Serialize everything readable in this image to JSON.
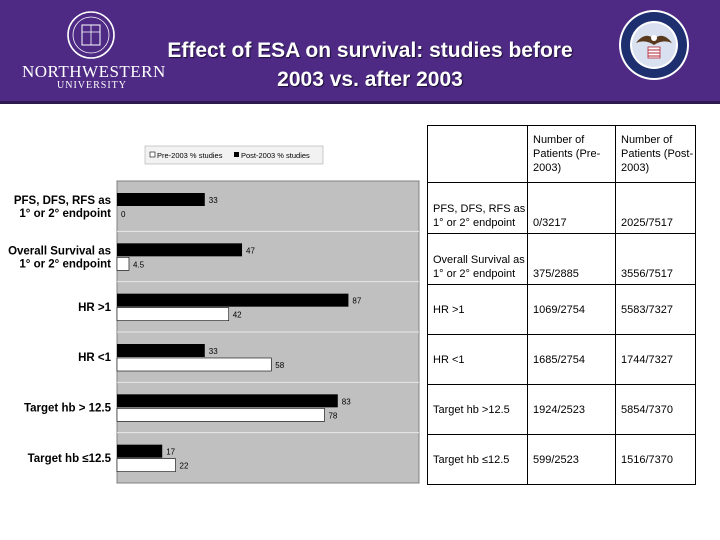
{
  "slide": {
    "title_line1": "Effect of ESA on survival: studies before",
    "title_line2": "2003 vs. after 2003",
    "left_logo_text": "NORTHWESTERN",
    "left_logo_subtext": "UNIVERSITY",
    "colors": {
      "header": "#4e2a84",
      "pre_bar": "#ffffff",
      "post_bar": "#000000",
      "plot_bg": "#c0c0c0"
    }
  },
  "chart_data": {
    "type": "bar",
    "orientation": "horizontal",
    "title": "",
    "xlabel": "",
    "ylabel": "",
    "legend": {
      "position": "top",
      "entries": [
        "Pre-2003 % studies",
        "Post-2003 % studies"
      ]
    },
    "categories": [
      [
        "PFS, DFS, RFS as",
        "1° or 2° endpoint"
      ],
      [
        "Overall Survival as",
        "1° or 2° endpoint"
      ],
      [
        "HR >1"
      ],
      [
        "HR <1"
      ],
      [
        "Target hb > 12.5"
      ],
      [
        "Target hb ≤12.5"
      ]
    ],
    "series": [
      {
        "name": "Post-2003 % studies",
        "color": "#000000",
        "values": [
          33,
          47,
          87,
          33,
          83,
          17
        ]
      },
      {
        "name": "Pre-2003 % studies",
        "color": "#ffffff",
        "values": [
          0,
          4.5,
          42,
          58,
          78,
          22
        ]
      }
    ],
    "xlim": [
      0,
      100
    ],
    "grid": true
  },
  "table": {
    "headers": [
      "",
      "Number of Patients (Pre-2003)",
      "Number of Patients (Post-2003)"
    ],
    "rows": [
      {
        "label": "PFS, DFS, RFS as 1° or 2° endpoint",
        "pre": "0/3217",
        "post": "2025/7517"
      },
      {
        "label": "Overall Survival as 1° or 2° endpoint",
        "pre": "375/2885",
        "post": "3556/7517"
      },
      {
        "label": "HR >1",
        "pre": "1069/2754",
        "post": "5583/7327"
      },
      {
        "label": "HR <1",
        "pre": "1685/2754",
        "post": "1744/7327"
      },
      {
        "label": "Target hb >12.5",
        "pre": "1924/2523",
        "post": "5854/7370"
      },
      {
        "label": "Target hb ≤12.5",
        "pre": "599/2523",
        "post": "1516/7370"
      }
    ]
  }
}
